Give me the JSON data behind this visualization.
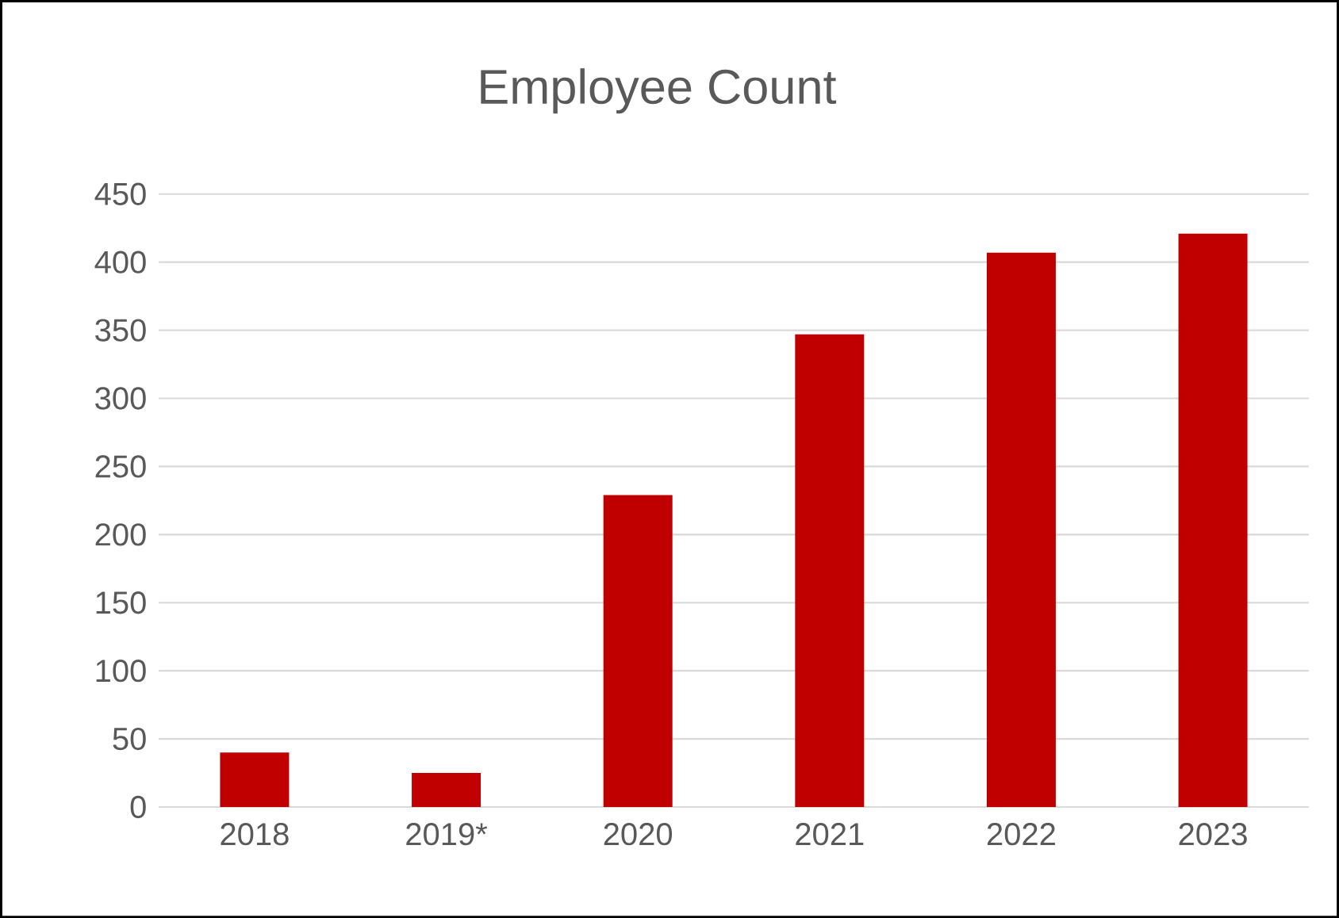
{
  "chart_data": {
    "type": "bar",
    "title": "Employee Count",
    "categories": [
      "2018",
      "2019*",
      "2020",
      "2021",
      "2022",
      "2023"
    ],
    "values": [
      40,
      25,
      229,
      347,
      407,
      421
    ],
    "color": "#c00000",
    "ylim": [
      0,
      450
    ],
    "yticks": [
      0,
      50,
      100,
      150,
      200,
      250,
      300,
      350,
      400,
      450
    ],
    "grid": "y"
  }
}
